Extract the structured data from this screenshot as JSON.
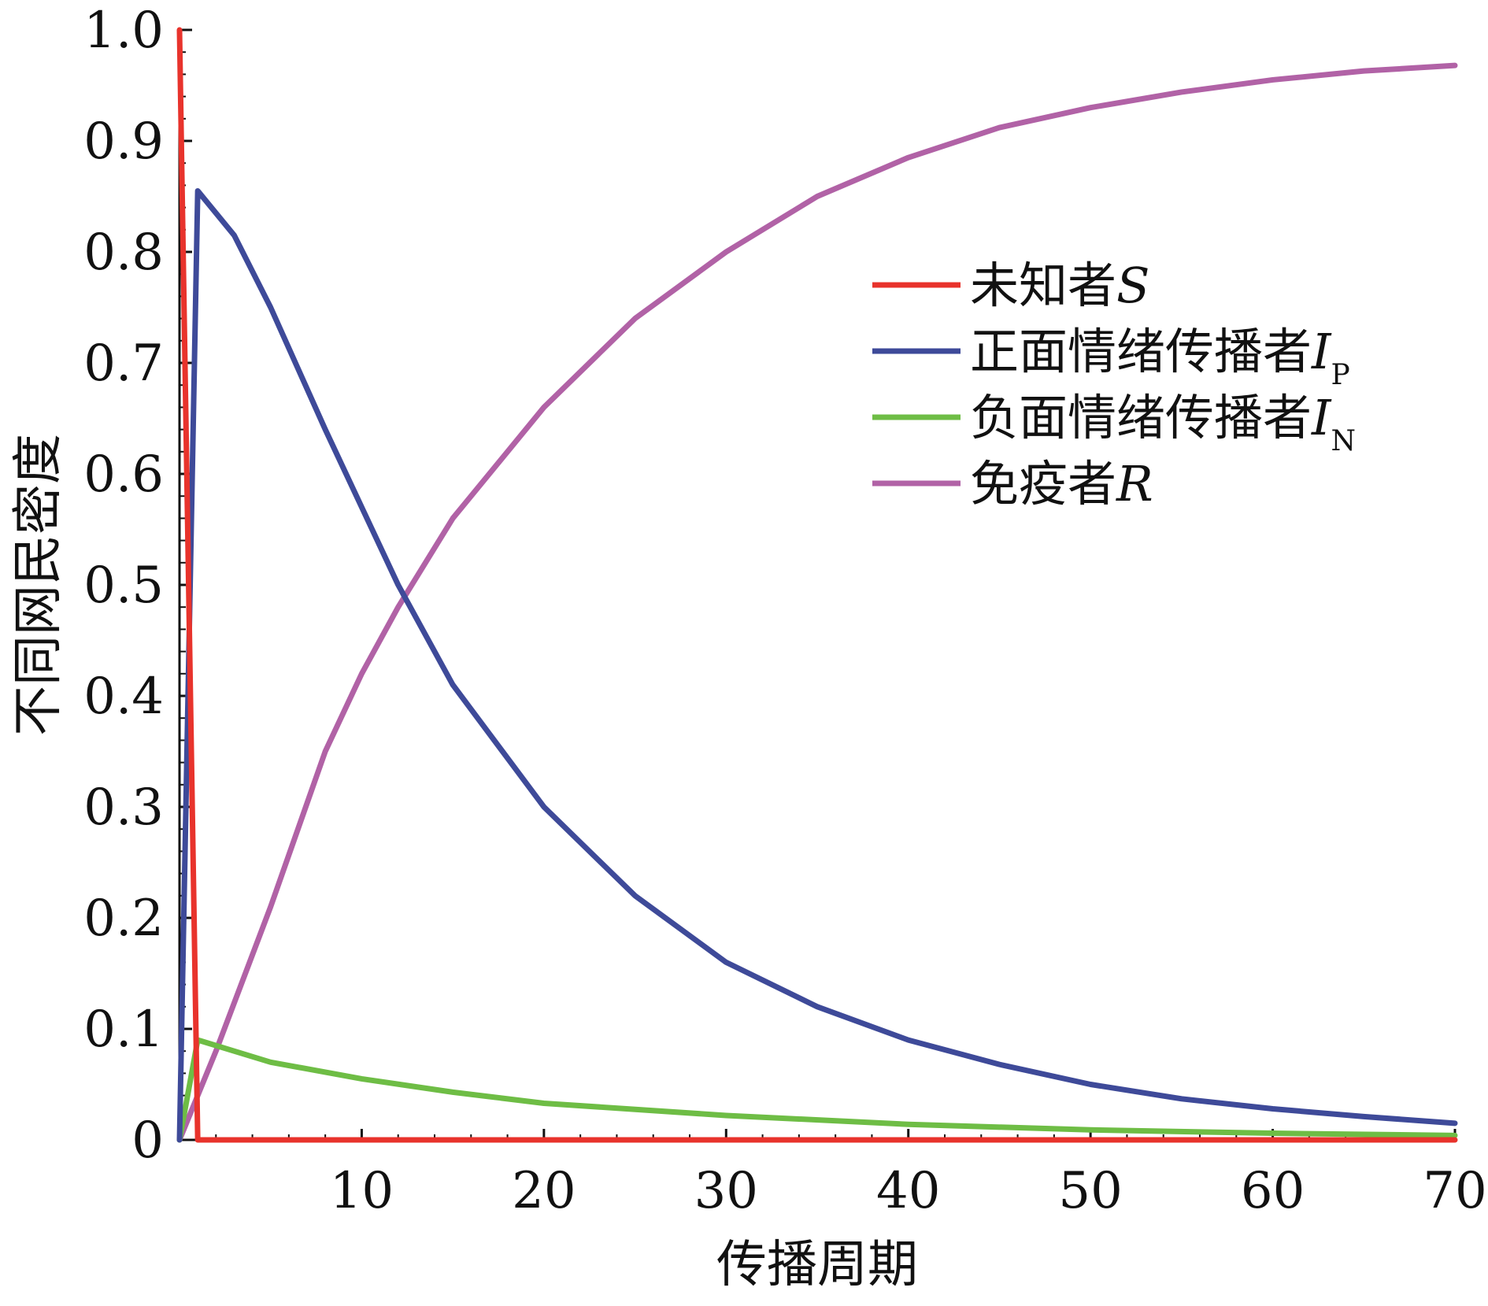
{
  "chart_data": {
    "type": "line",
    "title": "",
    "xlabel": "传播周期",
    "ylabel": "不同网民密度",
    "xlim": [
      0,
      70
    ],
    "ylim": [
      0,
      1
    ],
    "xticks": [
      10,
      20,
      30,
      40,
      50,
      60,
      70
    ],
    "xtick_labels": [
      "10",
      "20",
      "30",
      "40",
      "50",
      "60",
      "70"
    ],
    "yticks": [
      0,
      0.1,
      0.2,
      0.3,
      0.4,
      0.5,
      0.6,
      0.7,
      0.8,
      0.9,
      1.0
    ],
    "ytick_labels": [
      "0",
      "0.1",
      "0.2",
      "0.3",
      "0.4",
      "0.5",
      "0.6",
      "0.7",
      "0.8",
      "0.9",
      "1.0"
    ],
    "grid": false,
    "legend_position": "upper-right",
    "series": [
      {
        "name": "未知者",
        "name_symbol": "S",
        "name_subscript": "",
        "color": "#e8332c",
        "x": [
          0,
          1,
          2,
          3,
          5,
          10,
          20,
          30,
          40,
          50,
          60,
          70
        ],
        "y": [
          1.0,
          0.0,
          0.0,
          0.0,
          0.0,
          0.0,
          0.0,
          0.0,
          0.0,
          0.0,
          0.0,
          0.0
        ]
      },
      {
        "name": "正面情绪传播者",
        "name_symbol": "I",
        "name_subscript": "P",
        "color": "#3e4a99",
        "x": [
          0,
          1,
          3,
          5,
          8,
          10,
          12,
          15,
          20,
          25,
          30,
          35,
          40,
          45,
          50,
          55,
          60,
          65,
          70
        ],
        "y": [
          0.0,
          0.855,
          0.815,
          0.75,
          0.64,
          0.57,
          0.5,
          0.41,
          0.3,
          0.22,
          0.16,
          0.12,
          0.09,
          0.068,
          0.05,
          0.037,
          0.028,
          0.021,
          0.015
        ]
      },
      {
        "name": "负面情绪传播者",
        "name_symbol": "I",
        "name_subscript": "N",
        "color": "#6ebd45",
        "x": [
          0,
          1,
          5,
          10,
          15,
          20,
          30,
          40,
          50,
          60,
          70
        ],
        "y": [
          0.0,
          0.09,
          0.07,
          0.055,
          0.043,
          0.033,
          0.022,
          0.014,
          0.009,
          0.006,
          0.004
        ]
      },
      {
        "name": "免疫者",
        "name_symbol": "R",
        "name_subscript": "",
        "color": "#b162a6",
        "x": [
          0,
          2,
          5,
          8,
          10,
          12,
          15,
          20,
          25,
          30,
          35,
          40,
          45,
          50,
          55,
          60,
          65,
          70
        ],
        "y": [
          0.0,
          0.08,
          0.21,
          0.35,
          0.42,
          0.48,
          0.56,
          0.66,
          0.74,
          0.8,
          0.85,
          0.885,
          0.912,
          0.93,
          0.944,
          0.955,
          0.963,
          0.968
        ]
      }
    ]
  }
}
